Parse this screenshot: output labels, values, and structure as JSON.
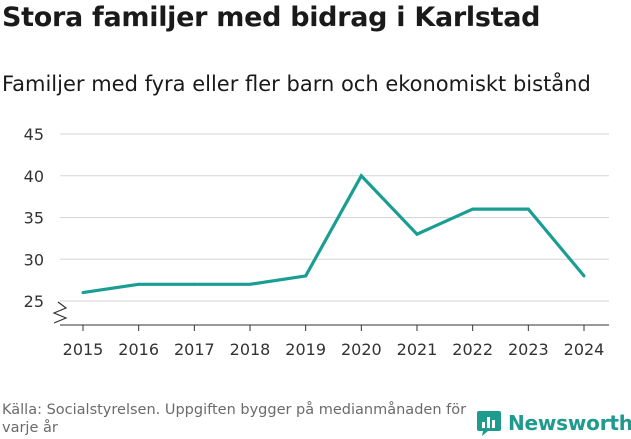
{
  "title": "Stora familjer med bidrag i Karlstad",
  "subtitle": "Familjer med fyra eller fler barn och ekonomiskt bistånd",
  "footer": {
    "source": "Källa: Socialstyrelsen. Uppgiften bygger på medianmånaden för varje år",
    "brand": "Newsworthy"
  },
  "colors": {
    "line": "#1a9e93",
    "brand": "#1e9a8e",
    "grid": "#d6d6d6",
    "axis": "#333333"
  },
  "chart_data": {
    "type": "line",
    "title": "Stora familjer med bidrag i Karlstad",
    "xlabel": "",
    "ylabel": "",
    "x": [
      "2015",
      "2016",
      "2017",
      "2018",
      "2019",
      "2020",
      "2021",
      "2022",
      "2023",
      "2024"
    ],
    "series": [
      {
        "name": "Familjer med fyra eller fler barn och ekonomiskt bistånd",
        "values": [
          26,
          27,
          27,
          27,
          28,
          40,
          33,
          36,
          36,
          28
        ]
      }
    ],
    "yticks": [
      25,
      30,
      35,
      40,
      45
    ],
    "ylim": [
      25,
      45
    ],
    "grid": true,
    "axis_break": true
  }
}
